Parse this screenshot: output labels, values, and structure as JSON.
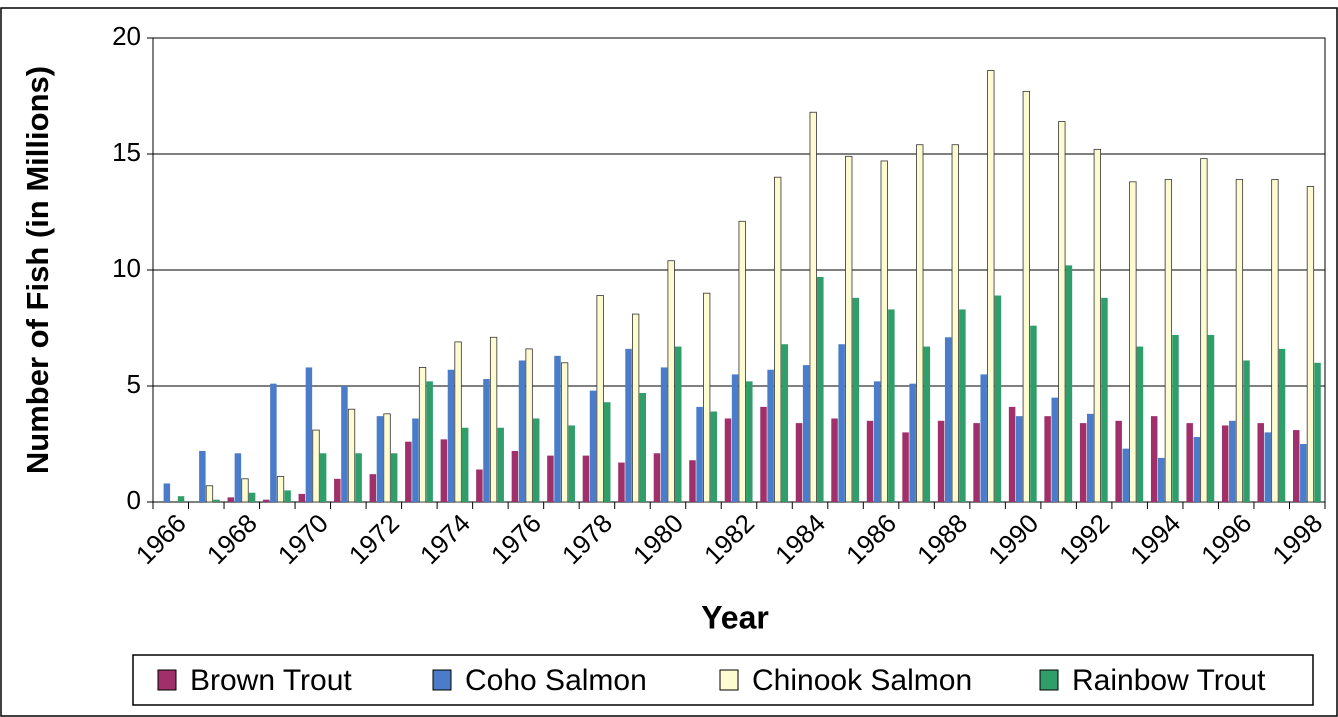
{
  "chart_data": {
    "type": "bar",
    "x_label": "Year",
    "y_label": "Number of Fish (in Millions)",
    "categories": [
      "1966",
      null,
      "1968",
      null,
      "1970",
      null,
      "1972",
      null,
      "1974",
      null,
      "1976",
      null,
      "1978",
      null,
      "1980",
      null,
      "1982",
      null,
      "1984",
      null,
      "1986",
      null,
      "1988",
      null,
      "1990",
      null,
      "1992",
      null,
      "1994",
      null,
      "1996",
      null,
      "1998"
    ],
    "series": [
      {
        "name": "Brown Trout",
        "color": "#a0306a",
        "values": [
          0,
          0,
          0.2,
          0.1,
          0.35,
          1.0,
          1.2,
          2.6,
          2.7,
          1.4,
          2.2,
          2.0,
          2.0,
          1.7,
          2.1,
          1.8,
          3.6,
          4.1,
          3.4,
          3.6,
          3.5,
          3.0,
          3.5,
          3.4,
          4.1,
          3.7,
          3.4,
          3.5,
          3.7,
          3.4,
          3.3,
          3.4,
          3.1
        ]
      },
      {
        "name": "Coho Salmon",
        "color": "#4a7cc9",
        "values": [
          0.8,
          2.2,
          2.1,
          5.1,
          5.8,
          5.0,
          3.7,
          3.6,
          5.7,
          5.3,
          6.1,
          6.3,
          4.8,
          6.6,
          5.8,
          4.1,
          5.5,
          5.7,
          5.9,
          6.8,
          5.2,
          5.1,
          7.1,
          5.5,
          3.7,
          4.5,
          3.8,
          2.3,
          1.9,
          2.8,
          3.5,
          3.0,
          2.5
        ]
      },
      {
        "name": "Chinook Salmon",
        "color": "#fdfcd0",
        "values": [
          0,
          0.7,
          1.0,
          1.1,
          3.1,
          4.0,
          3.8,
          5.8,
          6.9,
          7.1,
          6.6,
          6.0,
          8.9,
          8.1,
          10.4,
          9.0,
          12.1,
          14.0,
          16.8,
          14.9,
          14.7,
          15.4,
          15.4,
          18.6,
          17.7,
          16.4,
          15.2,
          13.8,
          13.9,
          14.8,
          13.9,
          13.9,
          13.6
        ]
      },
      {
        "name": "Rainbow Trout",
        "color": "#2f9e6a",
        "values": [
          0.25,
          0.1,
          0.4,
          0.5,
          2.1,
          2.1,
          2.1,
          5.2,
          3.2,
          3.2,
          3.6,
          3.3,
          4.3,
          4.7,
          6.7,
          3.9,
          5.2,
          6.8,
          9.7,
          8.8,
          8.3,
          6.7,
          8.3,
          8.9,
          7.6,
          10.2,
          8.8,
          6.7,
          7.2,
          7.2,
          6.1,
          6.6,
          6.0
        ]
      }
    ],
    "ylim": [
      0,
      20
    ],
    "yticks": [
      0,
      5,
      10,
      15,
      20
    ],
    "grid": true,
    "legend": "bottom"
  }
}
